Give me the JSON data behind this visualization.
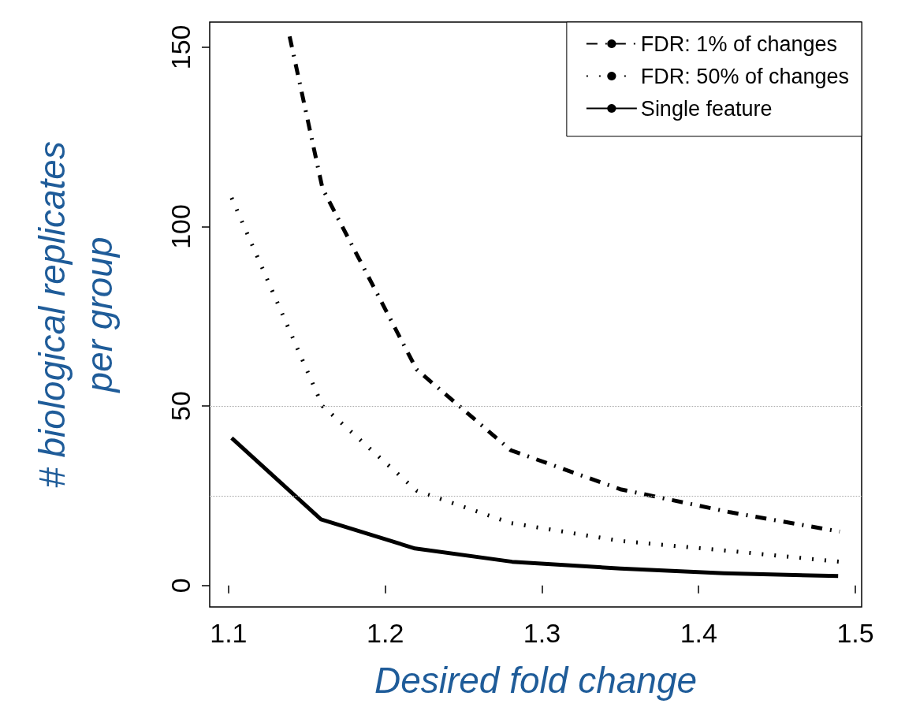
{
  "chart_data": {
    "type": "line",
    "xlabel": "Desired fold change",
    "ylabel": "# biological replicates\nper group",
    "xlim": [
      1.088,
      1.504
    ],
    "ylim": [
      -6,
      157
    ],
    "xticks": [
      1.1,
      1.2,
      1.3,
      1.4,
      1.5
    ],
    "yticks": [
      0,
      50,
      100,
      150
    ],
    "grid": false,
    "legend": "top right",
    "marker": "none",
    "ref_lines": [
      {
        "axis": "y",
        "value": 25,
        "color": "#aaaaaa",
        "line_style": "dotted"
      },
      {
        "axis": "y",
        "value": 50,
        "color": "#aaaaaa",
        "line_style": "dotted"
      }
    ],
    "series": [
      {
        "name": "FDR: 1% of changes",
        "color": "#000000",
        "line_style": "dashed",
        "x": [
          1.139,
          1.16,
          1.22,
          1.28,
          1.35,
          1.42,
          1.49
        ],
        "values": [
          153,
          110.6,
          60.2,
          37.7,
          26.8,
          20.4,
          15
        ]
      },
      {
        "name": "FDR: 50% of changes",
        "color": "#000000",
        "line_style": "dotted",
        "x": [
          1.102,
          1.16,
          1.22,
          1.28,
          1.35,
          1.42,
          1.49
        ],
        "values": [
          108,
          50,
          26.4,
          17.4,
          12.4,
          9.6,
          6.6
        ]
      },
      {
        "name": "Single feature",
        "color": "#000000",
        "line_style": "solid",
        "x": [
          1.102,
          1.159,
          1.219,
          1.281,
          1.35,
          1.416,
          1.489
        ],
        "values": [
          41.1,
          18.4,
          10.3,
          6.6,
          4.7,
          3.4,
          2.6
        ]
      }
    ]
  }
}
